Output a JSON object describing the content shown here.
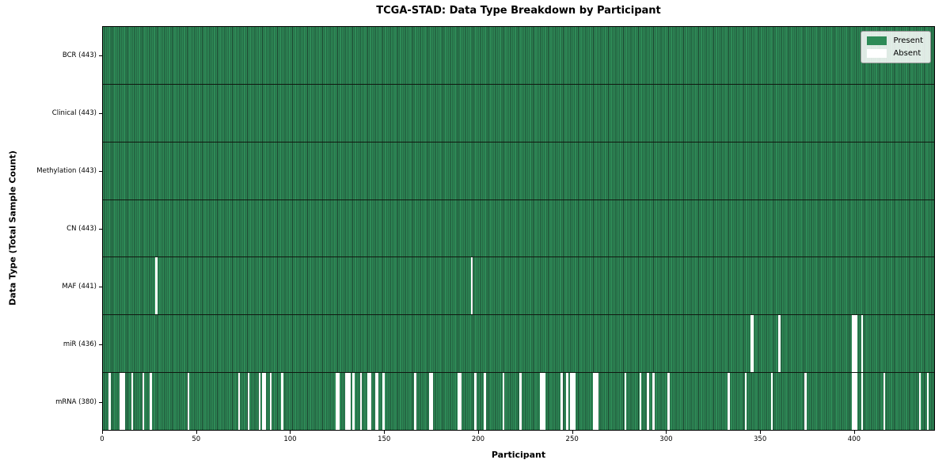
{
  "figure": {
    "title": "TCGA-STAD: Data Type Breakdown by Participant",
    "xlabel": "Participant",
    "ylabel": "Data Type (Total Sample Count)"
  },
  "legend": {
    "position": "upper right",
    "entries": [
      {
        "label": "Present",
        "color": "#2e8b57"
      },
      {
        "label": "Absent",
        "color": "#ffffff"
      }
    ]
  },
  "colors": {
    "present": "#2e8b57",
    "bar_edge": "#1c4430",
    "absent": "#ffffff",
    "plot_border": "#000000"
  },
  "axes": {
    "x_min": 0,
    "x_max": 443,
    "x_ticks": [
      0,
      50,
      100,
      150,
      200,
      250,
      300,
      350,
      400
    ]
  },
  "chart_data": {
    "type": "heatmap",
    "title": "TCGA-STAD: Data Type Breakdown by Participant",
    "xlabel": "Participant",
    "ylabel": "Data Type (Total Sample Count)",
    "legend": [
      "Present",
      "Absent"
    ],
    "n_participants": 443,
    "x_range": [
      0,
      443
    ],
    "rows": [
      {
        "label": "BCR (443)",
        "data_type": "BCR",
        "present_count": 443,
        "absent_participants": []
      },
      {
        "label": "Clinical (443)",
        "data_type": "Clinical",
        "present_count": 443,
        "absent_participants": []
      },
      {
        "label": "Methylation (443)",
        "data_type": "Methylation",
        "present_count": 443,
        "absent_participants": []
      },
      {
        "label": "CN (443)",
        "data_type": "CN",
        "present_count": 443,
        "absent_participants": []
      },
      {
        "label": "MAF (441)",
        "data_type": "MAF",
        "present_count": 441,
        "absent_participants": [
          28,
          196
        ]
      },
      {
        "label": "miR (436)",
        "data_type": "miR",
        "present_count": 436,
        "absent_participants": [
          345,
          346,
          360,
          399,
          400,
          401,
          404
        ]
      },
      {
        "label": "mRNA (380)",
        "data_type": "mRNA",
        "present_count": 380,
        "absent_participants": [
          3,
          9,
          10,
          11,
          15,
          21,
          25,
          45,
          72,
          77,
          83,
          85,
          86,
          89,
          95,
          124,
          125,
          129,
          130,
          131,
          133,
          137,
          141,
          142,
          145,
          146,
          149,
          166,
          174,
          175,
          189,
          190,
          198,
          203,
          213,
          222,
          233,
          234,
          235,
          244,
          247,
          249,
          250,
          251,
          261,
          262,
          263,
          278,
          286,
          290,
          293,
          301,
          333,
          342,
          356,
          374,
          399,
          400,
          401,
          404,
          416,
          435,
          439
        ]
      }
    ]
  }
}
